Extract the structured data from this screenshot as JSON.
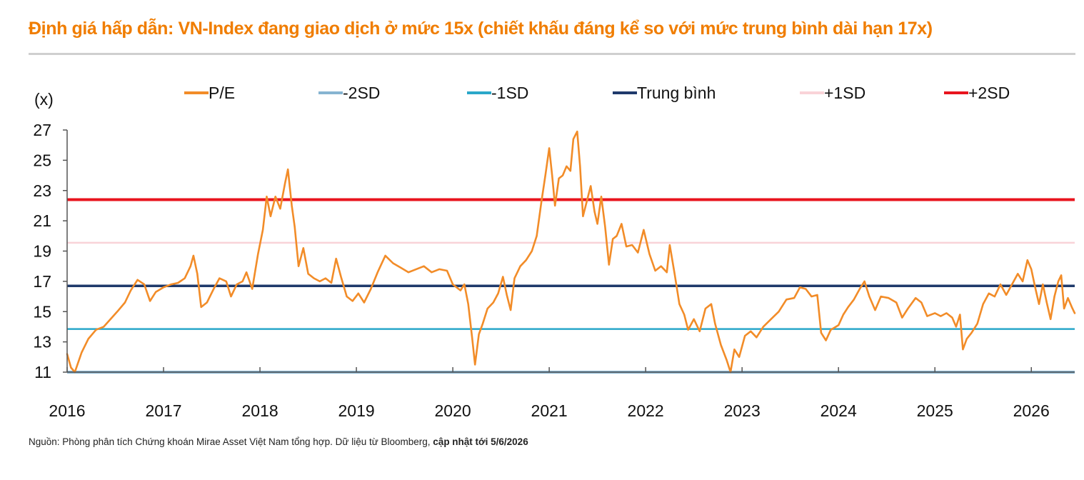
{
  "header": {
    "title": "Định giá hấp dẫn: VN-Index đang giao dịch ở mức 15x (chiết khấu đáng kể so với mức trung bình dài hạn 17x)"
  },
  "footer": {
    "source_prefix": "Nguồn: Phòng phân tích Chứng khoán Mirae Asset Việt Nam tổng hợp. Dữ liệu từ Bloomberg, ",
    "source_bold": "cập nhật tới 5/6/2026"
  },
  "chart_data": {
    "type": "line",
    "title": "Định giá hấp dẫn: VN-Index đang giao dịch ở mức 15x (chiết khấu đáng kể so với mức trung bình dài hạn 17x)",
    "ylabel": "(x)",
    "xlabel": "",
    "ylim": [
      11,
      27
    ],
    "yticks": [
      "27",
      "25",
      "23",
      "21",
      "19",
      "17",
      "15",
      "13",
      "11"
    ],
    "xlim": [
      2016.0,
      2026.45
    ],
    "xticks": [
      "2016",
      "2017",
      "2018",
      "2019",
      "2020",
      "2021",
      "2022",
      "2023",
      "2024",
      "2025",
      "2026"
    ],
    "grid": false,
    "legend_position": "top",
    "legend": [
      {
        "name": "P/E",
        "color": "#f28c28"
      },
      {
        "name": "-2SD",
        "color": "#86b4d1"
      },
      {
        "name": "-1SD",
        "color": "#2aa7c9"
      },
      {
        "name": "Trung bình",
        "color": "#1f3a6b"
      },
      {
        "name": "+1SD",
        "color": "#f9d3d8"
      },
      {
        "name": "+2SD",
        "color": "#e8141e"
      }
    ],
    "series": [
      {
        "name": "P/E",
        "color": "#f28c28",
        "points": [
          [
            2016.0,
            12.2
          ],
          [
            2016.04,
            11.3
          ],
          [
            2016.08,
            11.0
          ],
          [
            2016.15,
            12.3
          ],
          [
            2016.22,
            13.2
          ],
          [
            2016.3,
            13.8
          ],
          [
            2016.38,
            14.0
          ],
          [
            2016.45,
            14.5
          ],
          [
            2016.52,
            15.0
          ],
          [
            2016.6,
            15.6
          ],
          [
            2016.66,
            16.4
          ],
          [
            2016.73,
            17.1
          ],
          [
            2016.8,
            16.8
          ],
          [
            2016.86,
            15.7
          ],
          [
            2016.92,
            16.3
          ],
          [
            2017.0,
            16.6
          ],
          [
            2017.08,
            16.8
          ],
          [
            2017.15,
            16.9
          ],
          [
            2017.22,
            17.2
          ],
          [
            2017.28,
            18.0
          ],
          [
            2017.31,
            18.7
          ],
          [
            2017.35,
            17.5
          ],
          [
            2017.39,
            15.3
          ],
          [
            2017.45,
            15.6
          ],
          [
            2017.52,
            16.5
          ],
          [
            2017.58,
            17.2
          ],
          [
            2017.65,
            17.0
          ],
          [
            2017.7,
            16.0
          ],
          [
            2017.76,
            16.8
          ],
          [
            2017.82,
            17.0
          ],
          [
            2017.86,
            17.6
          ],
          [
            2017.92,
            16.5
          ],
          [
            2017.98,
            18.8
          ],
          [
            2018.03,
            20.4
          ],
          [
            2018.07,
            22.6
          ],
          [
            2018.11,
            21.3
          ],
          [
            2018.16,
            22.6
          ],
          [
            2018.21,
            21.8
          ],
          [
            2018.26,
            23.5
          ],
          [
            2018.29,
            24.4
          ],
          [
            2018.33,
            22.0
          ],
          [
            2018.36,
            20.6
          ],
          [
            2018.4,
            18.0
          ],
          [
            2018.45,
            19.2
          ],
          [
            2018.5,
            17.5
          ],
          [
            2018.56,
            17.2
          ],
          [
            2018.62,
            17.0
          ],
          [
            2018.68,
            17.2
          ],
          [
            2018.74,
            16.9
          ],
          [
            2018.79,
            18.5
          ],
          [
            2018.84,
            17.3
          ],
          [
            2018.9,
            16.0
          ],
          [
            2018.96,
            15.7
          ],
          [
            2019.02,
            16.2
          ],
          [
            2019.08,
            15.6
          ],
          [
            2019.15,
            16.5
          ],
          [
            2019.22,
            17.6
          ],
          [
            2019.3,
            18.7
          ],
          [
            2019.38,
            18.2
          ],
          [
            2019.46,
            17.9
          ],
          [
            2019.54,
            17.6
          ],
          [
            2019.62,
            17.8
          ],
          [
            2019.7,
            18.0
          ],
          [
            2019.78,
            17.6
          ],
          [
            2019.86,
            17.8
          ],
          [
            2019.94,
            17.7
          ],
          [
            2020.0,
            16.8
          ],
          [
            2020.08,
            16.4
          ],
          [
            2020.12,
            16.8
          ],
          [
            2020.16,
            15.5
          ],
          [
            2020.2,
            13.3
          ],
          [
            2020.23,
            11.5
          ],
          [
            2020.27,
            13.5
          ],
          [
            2020.31,
            14.2
          ],
          [
            2020.36,
            15.2
          ],
          [
            2020.42,
            15.6
          ],
          [
            2020.47,
            16.2
          ],
          [
            2020.52,
            17.3
          ],
          [
            2020.56,
            16.1
          ],
          [
            2020.6,
            15.1
          ],
          [
            2020.64,
            17.2
          ],
          [
            2020.7,
            18.0
          ],
          [
            2020.76,
            18.4
          ],
          [
            2020.82,
            19.0
          ],
          [
            2020.87,
            20.0
          ],
          [
            2020.92,
            22.3
          ],
          [
            2020.96,
            24.0
          ],
          [
            2021.0,
            25.8
          ],
          [
            2021.03,
            24.0
          ],
          [
            2021.06,
            22.0
          ],
          [
            2021.1,
            23.8
          ],
          [
            2021.14,
            24.0
          ],
          [
            2021.18,
            24.6
          ],
          [
            2021.22,
            24.3
          ],
          [
            2021.25,
            26.4
          ],
          [
            2021.29,
            26.9
          ],
          [
            2021.32,
            24.6
          ],
          [
            2021.35,
            21.3
          ],
          [
            2021.39,
            22.3
          ],
          [
            2021.43,
            23.3
          ],
          [
            2021.47,
            21.6
          ],
          [
            2021.5,
            20.8
          ],
          [
            2021.54,
            22.6
          ],
          [
            2021.58,
            20.6
          ],
          [
            2021.62,
            18.1
          ],
          [
            2021.66,
            19.8
          ],
          [
            2021.7,
            20.0
          ],
          [
            2021.75,
            20.8
          ],
          [
            2021.8,
            19.3
          ],
          [
            2021.86,
            19.4
          ],
          [
            2021.92,
            18.9
          ],
          [
            2021.98,
            20.4
          ],
          [
            2022.04,
            18.8
          ],
          [
            2022.1,
            17.7
          ],
          [
            2022.16,
            18.0
          ],
          [
            2022.22,
            17.6
          ],
          [
            2022.25,
            19.4
          ],
          [
            2022.3,
            17.5
          ],
          [
            2022.35,
            15.5
          ],
          [
            2022.4,
            14.8
          ],
          [
            2022.44,
            13.8
          ],
          [
            2022.5,
            14.5
          ],
          [
            2022.56,
            13.7
          ],
          [
            2022.62,
            15.2
          ],
          [
            2022.68,
            15.5
          ],
          [
            2022.72,
            14.2
          ],
          [
            2022.78,
            12.8
          ],
          [
            2022.84,
            11.8
          ],
          [
            2022.88,
            11.0
          ],
          [
            2022.92,
            12.5
          ],
          [
            2022.97,
            12.0
          ],
          [
            2023.03,
            13.4
          ],
          [
            2023.09,
            13.7
          ],
          [
            2023.15,
            13.3
          ],
          [
            2023.22,
            14.0
          ],
          [
            2023.3,
            14.5
          ],
          [
            2023.38,
            15.0
          ],
          [
            2023.46,
            15.8
          ],
          [
            2023.54,
            15.9
          ],
          [
            2023.6,
            16.6
          ],
          [
            2023.66,
            16.5
          ],
          [
            2023.72,
            16.0
          ],
          [
            2023.78,
            16.1
          ],
          [
            2023.82,
            13.6
          ],
          [
            2023.87,
            13.1
          ],
          [
            2023.92,
            13.8
          ],
          [
            2024.0,
            14.1
          ],
          [
            2024.05,
            14.8
          ],
          [
            2024.1,
            15.3
          ],
          [
            2024.16,
            15.8
          ],
          [
            2024.22,
            16.5
          ],
          [
            2024.27,
            17.0
          ],
          [
            2024.32,
            16.0
          ],
          [
            2024.38,
            15.1
          ],
          [
            2024.44,
            16.0
          ],
          [
            2024.52,
            15.9
          ],
          [
            2024.6,
            15.6
          ],
          [
            2024.66,
            14.6
          ],
          [
            2024.72,
            15.2
          ],
          [
            2024.8,
            15.9
          ],
          [
            2024.86,
            15.6
          ],
          [
            2024.92,
            14.7
          ],
          [
            2025.0,
            14.9
          ],
          [
            2025.06,
            14.7
          ],
          [
            2025.12,
            14.9
          ],
          [
            2025.18,
            14.6
          ],
          [
            2025.22,
            14.0
          ],
          [
            2025.26,
            14.8
          ],
          [
            2025.29,
            12.5
          ],
          [
            2025.33,
            13.2
          ],
          [
            2025.38,
            13.6
          ],
          [
            2025.44,
            14.2
          ],
          [
            2025.5,
            15.5
          ],
          [
            2025.56,
            16.2
          ],
          [
            2025.62,
            16.0
          ],
          [
            2025.68,
            16.8
          ],
          [
            2025.74,
            16.1
          ],
          [
            2025.8,
            16.8
          ],
          [
            2025.86,
            17.5
          ],
          [
            2025.91,
            17.0
          ],
          [
            2025.96,
            18.4
          ],
          [
            2026.0,
            17.8
          ],
          [
            2026.04,
            16.6
          ],
          [
            2026.08,
            15.5
          ],
          [
            2026.12,
            16.8
          ],
          [
            2026.16,
            15.6
          ],
          [
            2026.2,
            14.5
          ],
          [
            2026.24,
            16.0
          ],
          [
            2026.28,
            17.0
          ],
          [
            2026.31,
            17.4
          ],
          [
            2026.34,
            15.2
          ],
          [
            2026.38,
            15.9
          ],
          [
            2026.42,
            15.3
          ],
          [
            2026.45,
            14.9
          ]
        ]
      },
      {
        "name": "-2SD",
        "color": "#86b4d1",
        "value": 11.0
      },
      {
        "name": "-1SD",
        "color": "#2aa7c9",
        "value": 13.85
      },
      {
        "name": "Trung bình",
        "color": "#1f3a6b",
        "value": 16.7
      },
      {
        "name": "+1SD",
        "color": "#f9d3d8",
        "value": 19.55
      },
      {
        "name": "+2SD",
        "color": "#e8141e",
        "value": 22.4
      }
    ]
  }
}
